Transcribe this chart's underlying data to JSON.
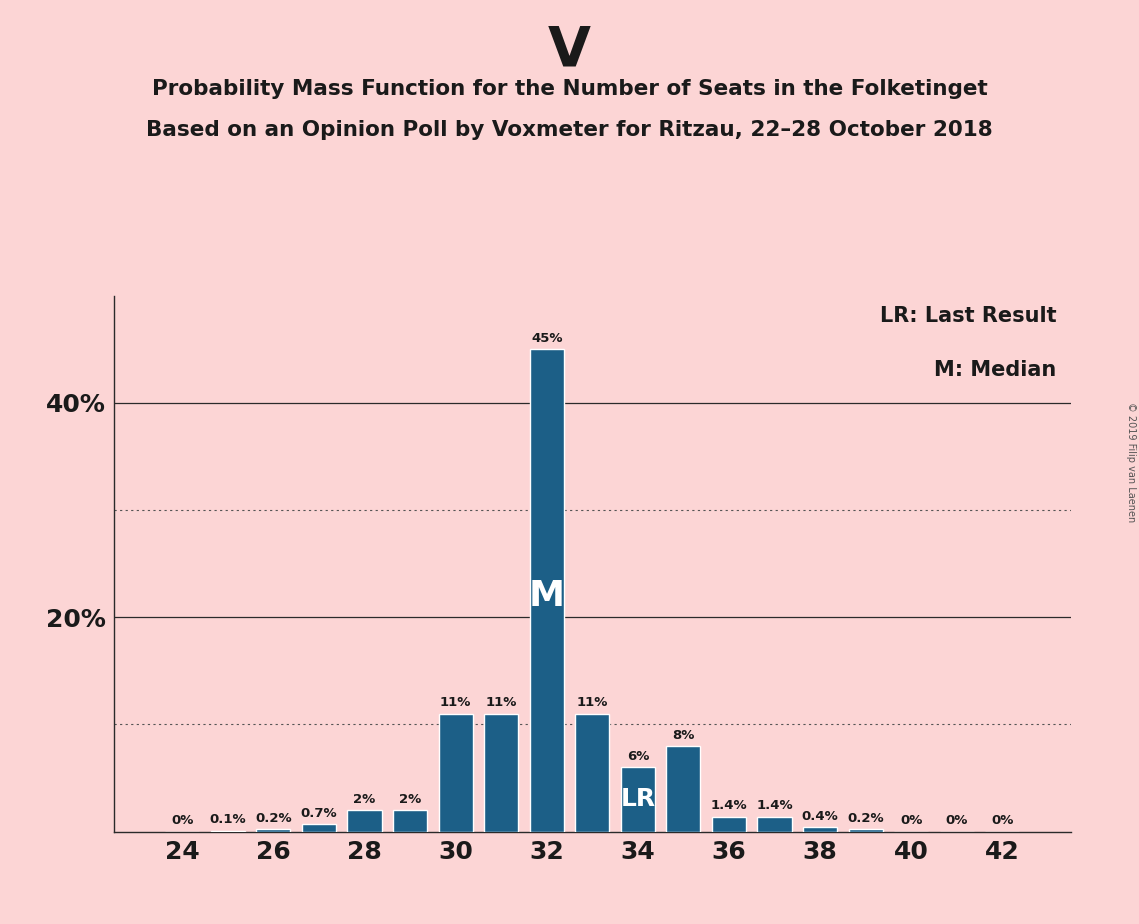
{
  "title_party": "V",
  "title_line1": "Probability Mass Function for the Number of Seats in the Folketinget",
  "title_line2": "Based on an Opinion Poll by Voxmeter for Ritzau, 22–28 October 2018",
  "copyright": "© 2019 Filip van Laenen",
  "legend_lr": "LR: Last Result",
  "legend_m": "M: Median",
  "background_color": "#fcd5d5",
  "bar_color": "#1c5f87",
  "seats": [
    24,
    25,
    26,
    27,
    28,
    29,
    30,
    31,
    32,
    33,
    34,
    35,
    36,
    37,
    38,
    39,
    40,
    41,
    42
  ],
  "probabilities": [
    0.0,
    0.1,
    0.2,
    0.7,
    2.0,
    2.0,
    11.0,
    11.0,
    45.0,
    11.0,
    6.0,
    8.0,
    1.4,
    1.4,
    0.4,
    0.2,
    0.0,
    0.0,
    0.0
  ],
  "labels": [
    "0%",
    "0.1%",
    "0.2%",
    "0.7%",
    "2%",
    "2%",
    "11%",
    "11%",
    "45%",
    "11%",
    "6%",
    "8%",
    "1.4%",
    "1.4%",
    "0.4%",
    "0.2%",
    "0%",
    "0%",
    "0%"
  ],
  "median_seat": 32,
  "lr_seat": 34,
  "ylim_max": 50,
  "solid_gridlines": [
    20,
    40
  ],
  "dotted_gridlines": [
    10,
    30
  ],
  "bar_width": 0.75,
  "label_fontsize": 9.5,
  "tick_fontsize": 18,
  "title_fontsize": 40,
  "subtitle_fontsize": 15.5,
  "legend_fontsize": 15,
  "M_fontsize": 26,
  "LR_fontsize": 18
}
